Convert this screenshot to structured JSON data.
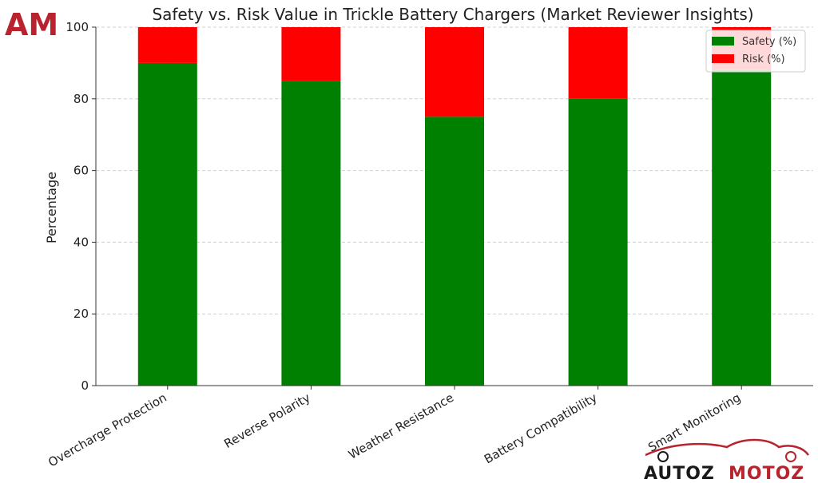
{
  "chart_data": {
    "type": "bar",
    "stacked": true,
    "title": "Safety vs. Risk Value in Trickle Battery Chargers (Market Reviewer Insights)",
    "ylabel": "Percentage",
    "xlabel": "",
    "categories": [
      "Overcharge Protection",
      "Reverse Polarity",
      "Weather Resistance",
      "Battery Compatibility",
      "Smart Monitoring"
    ],
    "series": [
      {
        "name": "Safety (%)",
        "values": [
          90,
          85,
          75,
          80,
          88
        ],
        "color": "#008000"
      },
      {
        "name": "Risk (%)",
        "values": [
          10,
          15,
          25,
          20,
          12
        ],
        "color": "#ff0000"
      }
    ],
    "ylim": [
      0,
      100
    ],
    "yticks": [
      "0",
      "20",
      "40",
      "60",
      "80",
      "100"
    ],
    "grid": true,
    "legend_position": "top-right"
  },
  "branding": {
    "top_logo": "AM",
    "bottom_logo_part1": "AUTOZ",
    "bottom_logo_part2": "MOTOZ",
    "logo_color": "#b8232e",
    "logo_dark": "#1a1a1a"
  }
}
